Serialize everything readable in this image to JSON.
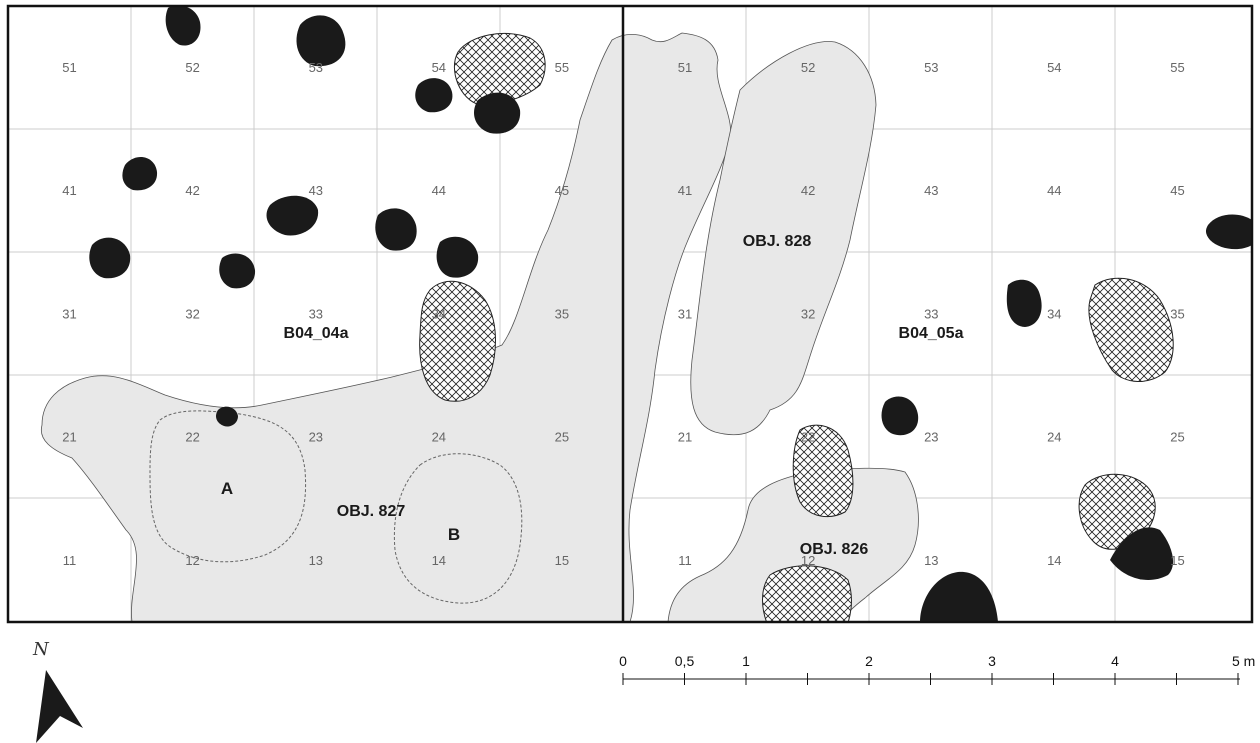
{
  "sectors": [
    {
      "name": "B04_04a",
      "cells": [
        {
          "num": "51"
        },
        {
          "num": "52"
        },
        {
          "num": "53"
        },
        {
          "num": "54"
        },
        {
          "num": "55"
        },
        {
          "num": "41"
        },
        {
          "num": "42"
        },
        {
          "num": "43"
        },
        {
          "num": "44"
        },
        {
          "num": "45"
        },
        {
          "num": "31"
        },
        {
          "num": "32"
        },
        {
          "num": "33"
        },
        {
          "num": "34"
        },
        {
          "num": "35"
        },
        {
          "num": "21"
        },
        {
          "num": "22"
        },
        {
          "num": "23"
        },
        {
          "num": "24"
        },
        {
          "num": "25"
        },
        {
          "num": "11"
        },
        {
          "num": "12"
        },
        {
          "num": "13"
        },
        {
          "num": "14"
        },
        {
          "num": "15"
        }
      ]
    },
    {
      "name": "B04_05a",
      "cells": [
        {
          "num": "51"
        },
        {
          "num": "52"
        },
        {
          "num": "53"
        },
        {
          "num": "54"
        },
        {
          "num": "55"
        },
        {
          "num": "41"
        },
        {
          "num": "42"
        },
        {
          "num": "43"
        },
        {
          "num": "44"
        },
        {
          "num": "45"
        },
        {
          "num": "31"
        },
        {
          "num": "32"
        },
        {
          "num": "33"
        },
        {
          "num": "34"
        },
        {
          "num": "35"
        },
        {
          "num": "21"
        },
        {
          "num": "22"
        },
        {
          "num": "23"
        },
        {
          "num": "24"
        },
        {
          "num": "25"
        },
        {
          "num": "11"
        },
        {
          "num": "12"
        },
        {
          "num": "13"
        },
        {
          "num": "14"
        },
        {
          "num": "15"
        }
      ]
    }
  ],
  "objects": {
    "obj827": "OBJ. 827",
    "obj828": "OBJ. 828",
    "obj826": "OBJ. 826",
    "sub_a": "A",
    "sub_b": "B"
  },
  "scale_bar": {
    "labels": [
      "0",
      "0,5",
      "1",
      "2",
      "3",
      "4",
      "5 m"
    ]
  },
  "north_arrow": {
    "label": "N",
    "icon": "north-arrow-icon"
  },
  "colors": {
    "feature_fill": "#e8e8e8",
    "posthole_fill": "#1a1a1a",
    "grid_line": "#cccccc",
    "frame": "#111111"
  }
}
